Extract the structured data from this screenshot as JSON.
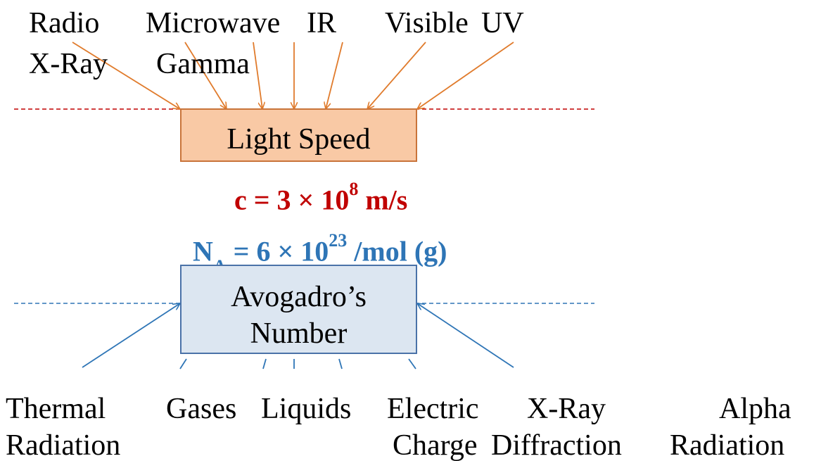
{
  "top_labels": {
    "radio": "Radio",
    "microwave": "Microwave",
    "ir": "IR",
    "visible": "Visible",
    "uv": "UV",
    "xray": "X-Ray",
    "gamma": "Gamma"
  },
  "light_box": {
    "label": "Light Speed"
  },
  "speed_formula": {
    "prefix": "c = 3 × 10",
    "exponent": "8",
    "unit": " m/s"
  },
  "avogadro_formula": {
    "symbol": "N",
    "subscript": "A",
    "middle": " = 6 × 10",
    "exponent": "23",
    "unit": " /mol (g)"
  },
  "avogadro_box": {
    "line1": "Avogadro’s",
    "line2": "Number"
  },
  "bottom_labels": {
    "thermal": "Thermal",
    "radiation_1": "Radiation",
    "gases": "Gases",
    "liquids": "Liquids",
    "electric": "Electric",
    "charge": "Charge",
    "xray": "X-Ray",
    "diffraction": "Diffraction",
    "alpha": "Alpha",
    "radiation_2": "Radiation"
  },
  "colors": {
    "orange_arrow": "#e07b2c",
    "red_dashed": "#c00000",
    "blue_arrow": "#2e75b6",
    "blue_dashed": "#2e75b6"
  }
}
